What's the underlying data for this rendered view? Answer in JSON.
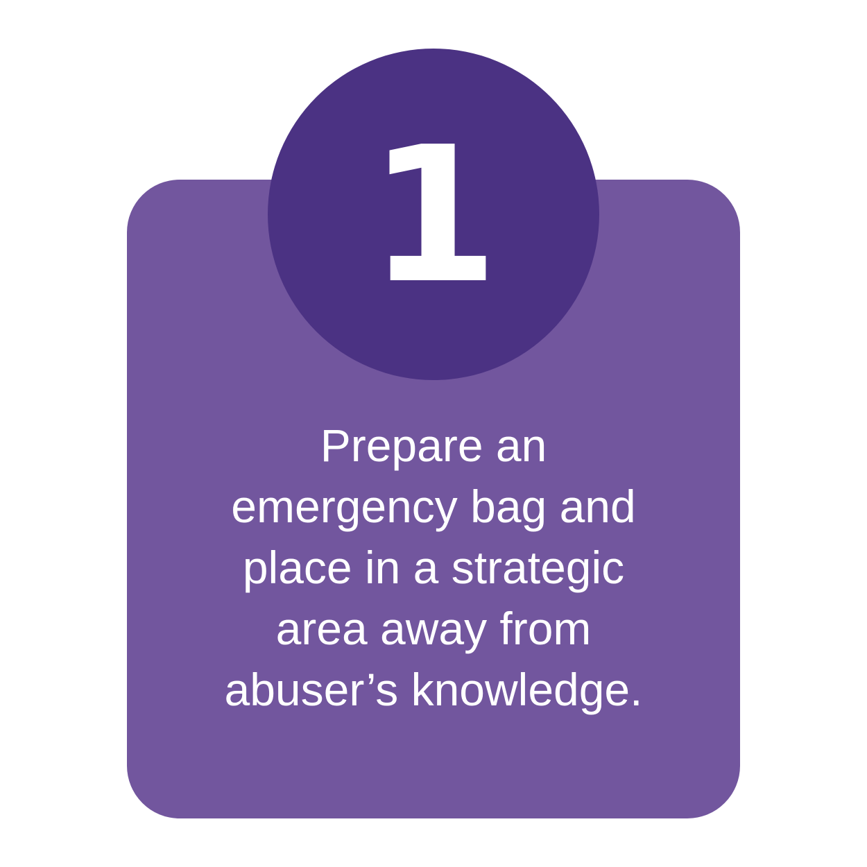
{
  "step": {
    "number": "1",
    "lines": [
      "Prepare an",
      "emergency bag and",
      "place in a strategic",
      "area away from",
      "abuser’s knowledge."
    ]
  },
  "colors": {
    "card": "#72569e",
    "badge": "#4b3283",
    "text": "#ffffff",
    "background": "#ffffff"
  }
}
